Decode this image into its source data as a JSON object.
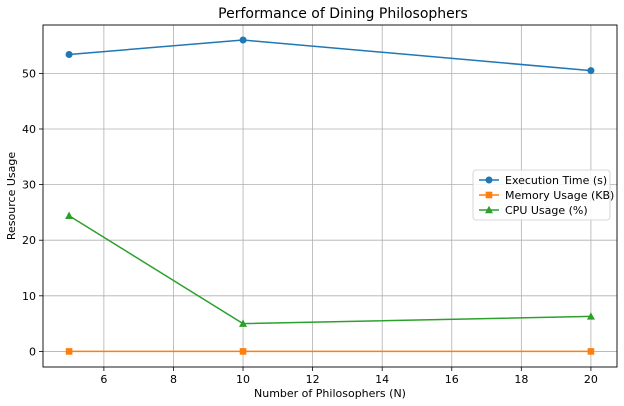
{
  "chart_data": {
    "type": "line",
    "title": "Performance of Dining Philosophers",
    "xlabel": "Number of Philosophers (N)",
    "ylabel": "Resource Usage",
    "x": [
      5,
      10,
      20
    ],
    "xlim": [
      4.25,
      20.75
    ],
    "ylim": [
      -2.8,
      58.7
    ],
    "xticks": [
      6,
      8,
      10,
      12,
      14,
      16,
      18,
      20
    ],
    "yticks": [
      0,
      10,
      20,
      30,
      40,
      50
    ],
    "grid": true,
    "legend_position": "center-right",
    "series": [
      {
        "name": "Execution Time (s)",
        "values": [
          53.4,
          56.0,
          50.5
        ],
        "color": "#1f77b4",
        "marker": "circle"
      },
      {
        "name": "Memory Usage (KB)",
        "values": [
          0.0,
          0.0,
          0.0
        ],
        "color": "#ff7f0e",
        "marker": "square"
      },
      {
        "name": "CPU Usage (%)",
        "values": [
          24.4,
          5.0,
          6.3
        ],
        "color": "#2ca02c",
        "marker": "triangle"
      }
    ]
  }
}
